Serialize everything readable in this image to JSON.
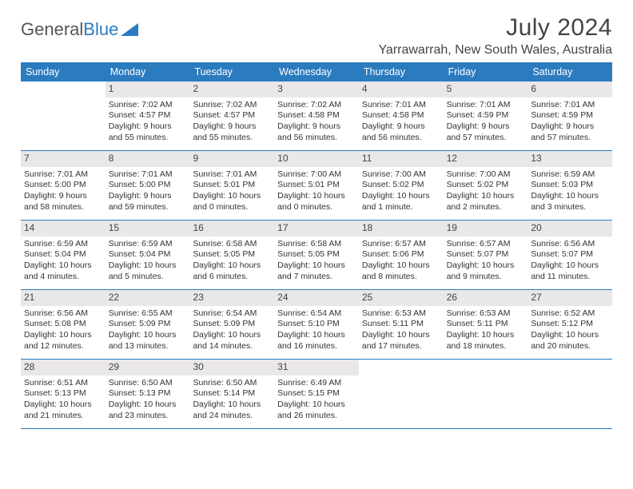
{
  "logo": {
    "text1": "General",
    "text2": "Blue"
  },
  "title": "July 2024",
  "location": "Yarrawarrah, New South Wales, Australia",
  "colors": {
    "header_bg": "#2b7bbf",
    "daynum_bg": "#e9e7e8",
    "border": "#2b7bbf",
    "text": "#333333",
    "page_bg": "#ffffff"
  },
  "dayNames": [
    "Sunday",
    "Monday",
    "Tuesday",
    "Wednesday",
    "Thursday",
    "Friday",
    "Saturday"
  ],
  "weeks": [
    [
      null,
      {
        "n": "1",
        "sr": "Sunrise: 7:02 AM",
        "ss": "Sunset: 4:57 PM",
        "dl": "Daylight: 9 hours and 55 minutes."
      },
      {
        "n": "2",
        "sr": "Sunrise: 7:02 AM",
        "ss": "Sunset: 4:57 PM",
        "dl": "Daylight: 9 hours and 55 minutes."
      },
      {
        "n": "3",
        "sr": "Sunrise: 7:02 AM",
        "ss": "Sunset: 4:58 PM",
        "dl": "Daylight: 9 hours and 56 minutes."
      },
      {
        "n": "4",
        "sr": "Sunrise: 7:01 AM",
        "ss": "Sunset: 4:58 PM",
        "dl": "Daylight: 9 hours and 56 minutes."
      },
      {
        "n": "5",
        "sr": "Sunrise: 7:01 AM",
        "ss": "Sunset: 4:59 PM",
        "dl": "Daylight: 9 hours and 57 minutes."
      },
      {
        "n": "6",
        "sr": "Sunrise: 7:01 AM",
        "ss": "Sunset: 4:59 PM",
        "dl": "Daylight: 9 hours and 57 minutes."
      }
    ],
    [
      {
        "n": "7",
        "sr": "Sunrise: 7:01 AM",
        "ss": "Sunset: 5:00 PM",
        "dl": "Daylight: 9 hours and 58 minutes."
      },
      {
        "n": "8",
        "sr": "Sunrise: 7:01 AM",
        "ss": "Sunset: 5:00 PM",
        "dl": "Daylight: 9 hours and 59 minutes."
      },
      {
        "n": "9",
        "sr": "Sunrise: 7:01 AM",
        "ss": "Sunset: 5:01 PM",
        "dl": "Daylight: 10 hours and 0 minutes."
      },
      {
        "n": "10",
        "sr": "Sunrise: 7:00 AM",
        "ss": "Sunset: 5:01 PM",
        "dl": "Daylight: 10 hours and 0 minutes."
      },
      {
        "n": "11",
        "sr": "Sunrise: 7:00 AM",
        "ss": "Sunset: 5:02 PM",
        "dl": "Daylight: 10 hours and 1 minute."
      },
      {
        "n": "12",
        "sr": "Sunrise: 7:00 AM",
        "ss": "Sunset: 5:02 PM",
        "dl": "Daylight: 10 hours and 2 minutes."
      },
      {
        "n": "13",
        "sr": "Sunrise: 6:59 AM",
        "ss": "Sunset: 5:03 PM",
        "dl": "Daylight: 10 hours and 3 minutes."
      }
    ],
    [
      {
        "n": "14",
        "sr": "Sunrise: 6:59 AM",
        "ss": "Sunset: 5:04 PM",
        "dl": "Daylight: 10 hours and 4 minutes."
      },
      {
        "n": "15",
        "sr": "Sunrise: 6:59 AM",
        "ss": "Sunset: 5:04 PM",
        "dl": "Daylight: 10 hours and 5 minutes."
      },
      {
        "n": "16",
        "sr": "Sunrise: 6:58 AM",
        "ss": "Sunset: 5:05 PM",
        "dl": "Daylight: 10 hours and 6 minutes."
      },
      {
        "n": "17",
        "sr": "Sunrise: 6:58 AM",
        "ss": "Sunset: 5:05 PM",
        "dl": "Daylight: 10 hours and 7 minutes."
      },
      {
        "n": "18",
        "sr": "Sunrise: 6:57 AM",
        "ss": "Sunset: 5:06 PM",
        "dl": "Daylight: 10 hours and 8 minutes."
      },
      {
        "n": "19",
        "sr": "Sunrise: 6:57 AM",
        "ss": "Sunset: 5:07 PM",
        "dl": "Daylight: 10 hours and 9 minutes."
      },
      {
        "n": "20",
        "sr": "Sunrise: 6:56 AM",
        "ss": "Sunset: 5:07 PM",
        "dl": "Daylight: 10 hours and 11 minutes."
      }
    ],
    [
      {
        "n": "21",
        "sr": "Sunrise: 6:56 AM",
        "ss": "Sunset: 5:08 PM",
        "dl": "Daylight: 10 hours and 12 minutes."
      },
      {
        "n": "22",
        "sr": "Sunrise: 6:55 AM",
        "ss": "Sunset: 5:09 PM",
        "dl": "Daylight: 10 hours and 13 minutes."
      },
      {
        "n": "23",
        "sr": "Sunrise: 6:54 AM",
        "ss": "Sunset: 5:09 PM",
        "dl": "Daylight: 10 hours and 14 minutes."
      },
      {
        "n": "24",
        "sr": "Sunrise: 6:54 AM",
        "ss": "Sunset: 5:10 PM",
        "dl": "Daylight: 10 hours and 16 minutes."
      },
      {
        "n": "25",
        "sr": "Sunrise: 6:53 AM",
        "ss": "Sunset: 5:11 PM",
        "dl": "Daylight: 10 hours and 17 minutes."
      },
      {
        "n": "26",
        "sr": "Sunrise: 6:53 AM",
        "ss": "Sunset: 5:11 PM",
        "dl": "Daylight: 10 hours and 18 minutes."
      },
      {
        "n": "27",
        "sr": "Sunrise: 6:52 AM",
        "ss": "Sunset: 5:12 PM",
        "dl": "Daylight: 10 hours and 20 minutes."
      }
    ],
    [
      {
        "n": "28",
        "sr": "Sunrise: 6:51 AM",
        "ss": "Sunset: 5:13 PM",
        "dl": "Daylight: 10 hours and 21 minutes."
      },
      {
        "n": "29",
        "sr": "Sunrise: 6:50 AM",
        "ss": "Sunset: 5:13 PM",
        "dl": "Daylight: 10 hours and 23 minutes."
      },
      {
        "n": "30",
        "sr": "Sunrise: 6:50 AM",
        "ss": "Sunset: 5:14 PM",
        "dl": "Daylight: 10 hours and 24 minutes."
      },
      {
        "n": "31",
        "sr": "Sunrise: 6:49 AM",
        "ss": "Sunset: 5:15 PM",
        "dl": "Daylight: 10 hours and 26 minutes."
      },
      null,
      null,
      null
    ]
  ]
}
